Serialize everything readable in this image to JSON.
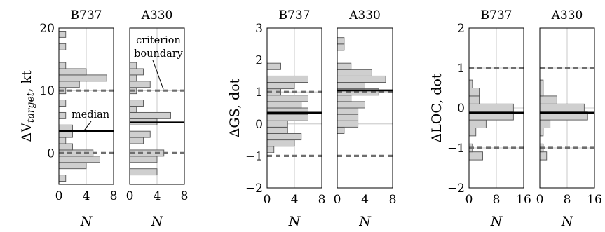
{
  "chart_data": {
    "type": "bar",
    "orientation": "horizontal-histogram",
    "xlabel": "N",
    "groups": [
      {
        "ylabel_prefix": "ΔV",
        "ylabel_sub": "target",
        "ylabel_suffix": ", kt",
        "ylim": [
          -5,
          20
        ],
        "yticks": [
          "0",
          "10",
          "20"
        ],
        "xlim": [
          0,
          8
        ],
        "xticks": [
          "0",
          "4",
          "8"
        ],
        "bin_width": 1,
        "criteria": [
          0,
          10
        ],
        "panels": [
          {
            "title": "B737",
            "median": 3.5,
            "bins": [
              {
                "y": -4,
                "n": 1
              },
              {
                "y": -2,
                "n": 4
              },
              {
                "y": -1,
                "n": 6
              },
              {
                "y": 0,
                "n": 5
              },
              {
                "y": 1,
                "n": 2
              },
              {
                "y": 2,
                "n": 1
              },
              {
                "y": 3,
                "n": 2
              },
              {
                "y": 4,
                "n": 2
              },
              {
                "y": 6,
                "n": 1
              },
              {
                "y": 8,
                "n": 1
              },
              {
                "y": 10,
                "n": 1
              },
              {
                "y": 11,
                "n": 3
              },
              {
                "y": 12,
                "n": 7
              },
              {
                "y": 13,
                "n": 4
              },
              {
                "y": 14,
                "n": 1
              },
              {
                "y": 17,
                "n": 1
              },
              {
                "y": 19,
                "n": 1
              }
            ]
          },
          {
            "title": "A330",
            "median": 4.9,
            "bins": [
              {
                "y": -3,
                "n": 4
              },
              {
                "y": -1,
                "n": 4
              },
              {
                "y": 0,
                "n": 5
              },
              {
                "y": 2,
                "n": 2
              },
              {
                "y": 3,
                "n": 3
              },
              {
                "y": 5,
                "n": 4
              },
              {
                "y": 6,
                "n": 6
              },
              {
                "y": 7,
                "n": 1
              },
              {
                "y": 8,
                "n": 2
              },
              {
                "y": 10,
                "n": 1
              },
              {
                "y": 11,
                "n": 3
              },
              {
                "y": 12,
                "n": 1
              },
              {
                "y": 13,
                "n": 2
              },
              {
                "y": 14,
                "n": 1
              }
            ]
          }
        ]
      },
      {
        "ylabel_prefix": "ΔGS",
        "ylabel_sub": "",
        "ylabel_suffix": ", dot",
        "ylim": [
          -2,
          3
        ],
        "yticks": [
          "−2",
          "−1",
          "0",
          "1",
          "2",
          "3"
        ],
        "xlim": [
          0,
          8
        ],
        "xticks": [
          "0",
          "4",
          "8"
        ],
        "bin_width": 0.2,
        "criteria": [
          -1,
          1
        ],
        "panels": [
          {
            "title": "B737",
            "median": 0.35,
            "bins": [
              {
                "y": -0.8,
                "n": 1
              },
              {
                "y": -0.6,
                "n": 4
              },
              {
                "y": -0.4,
                "n": 5
              },
              {
                "y": -0.2,
                "n": 3
              },
              {
                "y": 0.0,
                "n": 3
              },
              {
                "y": 0.2,
                "n": 6
              },
              {
                "y": 0.4,
                "n": 6
              },
              {
                "y": 0.6,
                "n": 5
              },
              {
                "y": 0.8,
                "n": 6
              },
              {
                "y": 1.0,
                "n": 2
              },
              {
                "y": 1.2,
                "n": 4
              },
              {
                "y": 1.4,
                "n": 6
              },
              {
                "y": 1.8,
                "n": 2
              }
            ]
          },
          {
            "title": "A330",
            "median": 1.05,
            "bins": [
              {
                "y": -0.2,
                "n": 1
              },
              {
                "y": 0.0,
                "n": 3
              },
              {
                "y": 0.2,
                "n": 3
              },
              {
                "y": 0.4,
                "n": 3
              },
              {
                "y": 0.6,
                "n": 4
              },
              {
                "y": 0.8,
                "n": 2
              },
              {
                "y": 1.0,
                "n": 6
              },
              {
                "y": 1.2,
                "n": 4
              },
              {
                "y": 1.4,
                "n": 7
              },
              {
                "y": 1.6,
                "n": 5
              },
              {
                "y": 1.8,
                "n": 2
              },
              {
                "y": 2.4,
                "n": 1
              },
              {
                "y": 2.6,
                "n": 1
              }
            ]
          }
        ]
      },
      {
        "ylabel_prefix": "ΔLOC",
        "ylabel_sub": "",
        "ylabel_suffix": ", dot",
        "ylim": [
          -2,
          2
        ],
        "yticks": [
          "−2",
          "−1",
          "0",
          "1",
          "2"
        ],
        "xlim": [
          0,
          16
        ],
        "xticks": [
          "0",
          "8",
          "16"
        ],
        "bin_width": 0.2,
        "criteria": [
          -1,
          1
        ],
        "panels": [
          {
            "title": "B737",
            "median": -0.12,
            "bins": [
              {
                "y": -1.2,
                "n": 4
              },
              {
                "y": -1.0,
                "n": 1
              },
              {
                "y": -0.6,
                "n": 2
              },
              {
                "y": -0.4,
                "n": 5
              },
              {
                "y": -0.2,
                "n": 13
              },
              {
                "y": 0.0,
                "n": 13
              },
              {
                "y": 0.2,
                "n": 3
              },
              {
                "y": 0.4,
                "n": 3
              },
              {
                "y": 0.6,
                "n": 1
              }
            ]
          },
          {
            "title": "A330",
            "median": -0.12,
            "bins": [
              {
                "y": -1.2,
                "n": 2
              },
              {
                "y": -1.0,
                "n": 1
              },
              {
                "y": -0.6,
                "n": 1
              },
              {
                "y": -0.4,
                "n": 3
              },
              {
                "y": -0.2,
                "n": 14
              },
              {
                "y": 0.0,
                "n": 13
              },
              {
                "y": 0.2,
                "n": 5
              },
              {
                "y": 0.4,
                "n": 1
              },
              {
                "y": 0.6,
                "n": 1
              }
            ]
          }
        ]
      }
    ],
    "annotations": {
      "median": "median",
      "criterion_line1": "criterion",
      "criterion_line2": "boundary"
    }
  }
}
